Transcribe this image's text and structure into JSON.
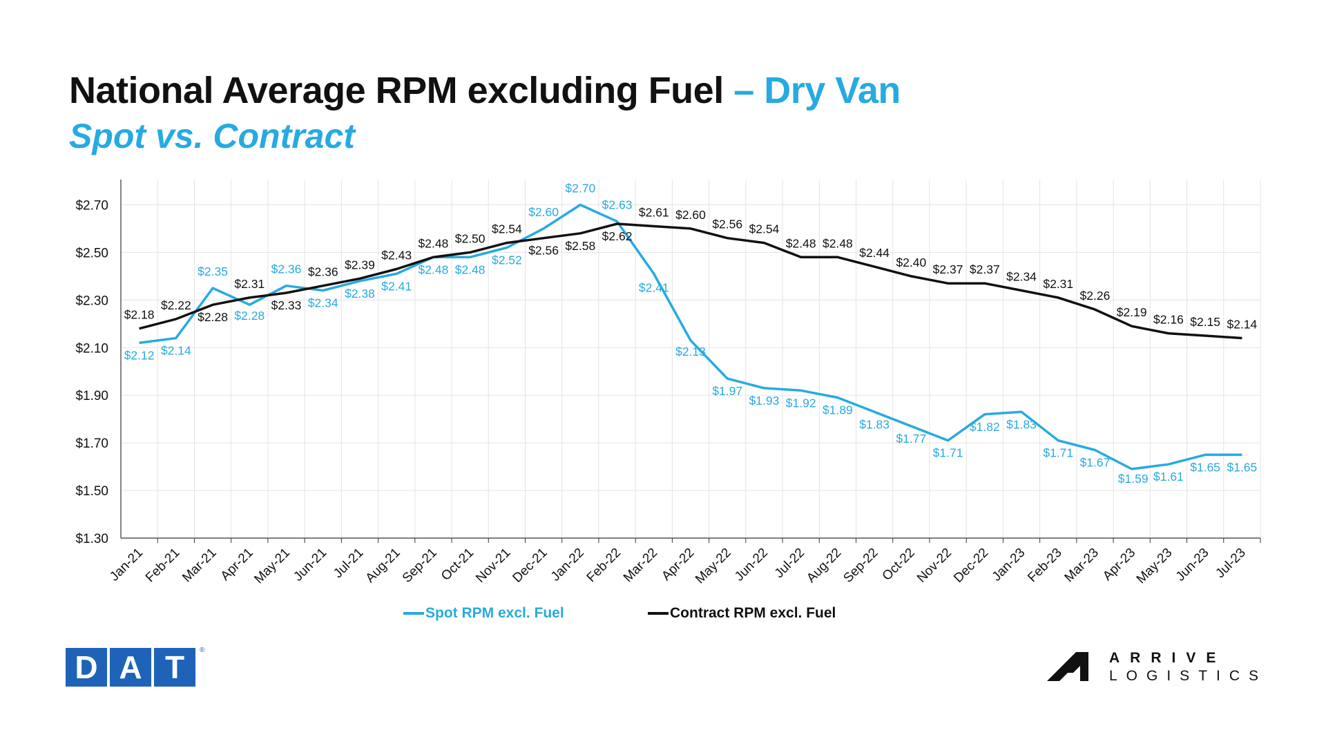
{
  "header": {
    "title_main": "National Average RPM excluding Fuel",
    "title_accent": " – Dry Van",
    "subtitle": "Spot vs. Contract"
  },
  "colors": {
    "spot": "#27aae1",
    "contract": "#111111",
    "grid": "#e3e3e3"
  },
  "chart_data": {
    "type": "line",
    "categories": [
      "Jan-21",
      "Feb-21",
      "Mar-21",
      "Apr-21",
      "May-21",
      "Jun-21",
      "Jul-21",
      "Aug-21",
      "Sep-21",
      "Oct-21",
      "Nov-21",
      "Dec-21",
      "Jan-22",
      "Feb-22",
      "Mar-22",
      "Apr-22",
      "May-22",
      "Jun-22",
      "Jul-22",
      "Aug-22",
      "Sep-22",
      "Oct-22",
      "Nov-22",
      "Dec-22",
      "Jan-23",
      "Feb-23",
      "Mar-23",
      "Apr-23",
      "May-23",
      "Jun-23",
      "Jul-23"
    ],
    "series": [
      {
        "name": "Spot RPM excl. Fuel",
        "values": [
          2.12,
          2.14,
          2.35,
          2.28,
          2.36,
          2.34,
          2.38,
          2.41,
          2.48,
          2.48,
          2.52,
          2.6,
          2.7,
          2.63,
          2.41,
          2.13,
          1.97,
          1.93,
          1.92,
          1.89,
          1.83,
          1.77,
          1.71,
          1.82,
          1.83,
          1.71,
          1.67,
          1.59,
          1.61,
          1.65,
          1.65
        ],
        "labels": [
          "$2.12",
          "$2.14",
          "$2.35",
          "$2.28",
          "$2.36",
          "$2.34",
          "$2.38",
          "$2.41",
          "$2.48",
          "$2.48",
          "$2.52",
          "$2.60",
          "$2.70",
          "$2.63",
          "$2.41",
          "$2.13",
          "$1.97",
          "$1.93",
          "$1.92",
          "$1.89",
          "$1.83",
          "$1.77",
          "$1.71",
          "$1.82",
          "$1.83",
          "$1.71",
          "$1.67",
          "$1.59",
          "$1.61",
          "$1.65",
          "$1.65"
        ]
      },
      {
        "name": "Contract RPM excl. Fuel",
        "values": [
          2.18,
          2.22,
          2.28,
          2.31,
          2.33,
          2.36,
          2.39,
          2.43,
          2.48,
          2.5,
          2.54,
          2.56,
          2.58,
          2.62,
          2.61,
          2.6,
          2.56,
          2.54,
          2.48,
          2.48,
          2.44,
          2.4,
          2.37,
          2.37,
          2.34,
          2.31,
          2.26,
          2.19,
          2.16,
          2.15,
          2.14
        ],
        "labels": [
          "$2.18",
          "$2.22",
          "$2.28",
          "$2.31",
          "$2.33",
          "$2.36",
          "$2.39",
          "$2.43",
          "$2.48",
          "$2.50",
          "$2.54",
          "$2.56",
          "$2.58",
          "$2.62",
          "$2.61",
          "$2.60",
          "$2.56",
          "$2.54",
          "$2.48",
          "$2.48",
          "$2.44",
          "$2.40",
          "$2.37",
          "$2.37",
          "$2.34",
          "$2.31",
          "$2.26",
          "$2.19",
          "$2.16",
          "$2.15",
          "$2.14"
        ]
      }
    ],
    "yticks": [
      "$1.30",
      "$1.50",
      "$1.70",
      "$1.90",
      "$2.10",
      "$2.30",
      "$2.50",
      "$2.70"
    ],
    "ylim": [
      1.3,
      2.8
    ],
    "grid": true,
    "legend_position": "bottom"
  },
  "logos": {
    "dat_letters": [
      "D",
      "A",
      "T"
    ],
    "dat_mark": "®",
    "arrive_top": "ARRIVE",
    "arrive_bottom": "LOGISTICS"
  }
}
